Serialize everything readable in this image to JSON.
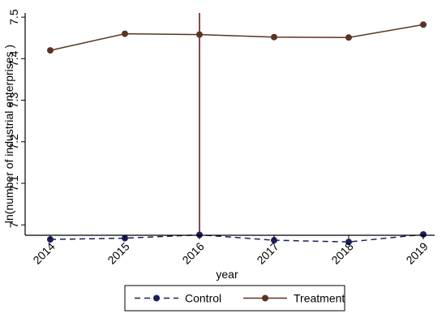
{
  "chart_data": {
    "type": "line",
    "title": "",
    "xlabel": "year",
    "ylabel": "ln(number of industrial enterprises )",
    "x": [
      2014,
      2015,
      2016,
      2017,
      2018,
      2019
    ],
    "x_tick_labels": [
      "2014",
      "2015",
      "2016",
      "2017",
      "2018",
      "2019"
    ],
    "xlim": [
      2014,
      2019
    ],
    "y_ticks": [
      7,
      7.1,
      7.2,
      7.3,
      7.4,
      7.5
    ],
    "y_tick_labels": [
      "7",
      "7.1",
      "7.2",
      "7.3",
      "7.4",
      "7.5"
    ],
    "ylim": [
      6.975,
      7.51
    ],
    "grid": false,
    "legend_position": "bottom",
    "reference_line_x": 2016,
    "series": [
      {
        "name": "Control",
        "values": [
          6.965,
          6.968,
          6.976,
          6.963,
          6.959,
          6.977
        ],
        "color": "#1a1f5e",
        "line_style": "dashed",
        "marker": "circle"
      },
      {
        "name": "Treatment",
        "values": [
          7.42,
          7.46,
          7.458,
          7.452,
          7.451,
          7.482
        ],
        "color": "#5a3423",
        "line_style": "solid",
        "marker": "circle"
      }
    ],
    "reference_line_color": "#6b1d24"
  }
}
